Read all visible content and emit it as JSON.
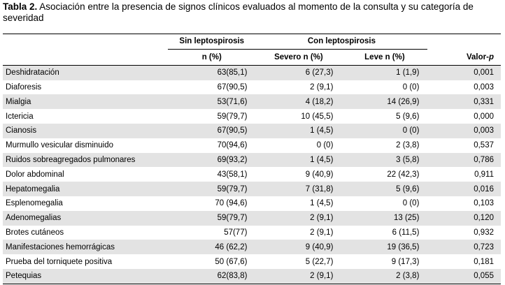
{
  "caption": {
    "label": "Tabla 2.",
    "text": " Asociación entre la presencia de signos clínicos evaluados al momento de la consulta y su categoría de severidad"
  },
  "header": {
    "sin": "Sin leptospirosis",
    "con": "Con leptospirosis",
    "n": "n (%)",
    "severo": "Severo n (%)",
    "leve": "Leve n (%)",
    "valor": "Valor-",
    "valor_p": "p"
  },
  "rows": [
    {
      "sign": "Deshidratación",
      "sin": "63(85,1)",
      "severo": "6 (27,3)",
      "leve": "1 (1,9)",
      "p": "0,001"
    },
    {
      "sign": "Diaforesis",
      "sin": "67(90,5)",
      "severo": "2 (9,1)",
      "leve": "0 (0)",
      "p": "0,003"
    },
    {
      "sign": "Mialgia",
      "sin": "53(71,6)",
      "severo": "4 (18,2)",
      "leve": "14 (26,9)",
      "p": "0,331"
    },
    {
      "sign": "Ictericia",
      "sin": "59(79,7)",
      "severo": "10 (45,5)",
      "leve": "5 (9,6)",
      "p": "0,000"
    },
    {
      "sign": "Cianosis",
      "sin": "67(90,5)",
      "severo": "1 (4,5)",
      "leve": "0 (0)",
      "p": "0,003"
    },
    {
      "sign": "Murmullo vesicular disminuido",
      "sin": "70(94,6)",
      "severo": "0 (0)",
      "leve": "2 (3,8)",
      "p": "0,537"
    },
    {
      "sign": "Ruidos sobreagregados pulmonares",
      "sin": "69(93,2)",
      "severo": "1 (4,5)",
      "leve": "3 (5,8)",
      "p": "0,786"
    },
    {
      "sign": "Dolor abdominal",
      "sin": "43(58,1)",
      "severo": "9 (40,9)",
      "leve": "22 (42,3)",
      "p": "0,911"
    },
    {
      "sign": "Hepatomegalia",
      "sin": "59(79,7)",
      "severo": "7 (31,8)",
      "leve": "5 (9,6)",
      "p": "0,016"
    },
    {
      "sign": "Esplenomegalia",
      "sin": "70 (94,6)",
      "severo": "1 (4,5)",
      "leve": "0 (0)",
      "p": "0,103"
    },
    {
      "sign": "Adenomegalias",
      "sin": "59(79,7)",
      "severo": "2 (9,1)",
      "leve": "13 (25)",
      "p": "0,120"
    },
    {
      "sign": "Brotes cutáneos",
      "sin": "57(77)",
      "severo": "2 (9,1)",
      "leve": "6 (11,5)",
      "p": "0,932"
    },
    {
      "sign": "Manifestaciones hemorrágicas",
      "sin": "46 (62,2)",
      "severo": "9 (40,9)",
      "leve": "19 (36,5)",
      "p": "0,723"
    },
    {
      "sign": "Prueba del torniquete positiva",
      "sin": "50 (67,6)",
      "severo": "5 (22,7)",
      "leve": "9 (17,3)",
      "p": "0,181"
    },
    {
      "sign": "Petequias",
      "sin": "62(83,8)",
      "severo": "2 (9,1)",
      "leve": "2 (3,8)",
      "p": "0,055"
    }
  ]
}
